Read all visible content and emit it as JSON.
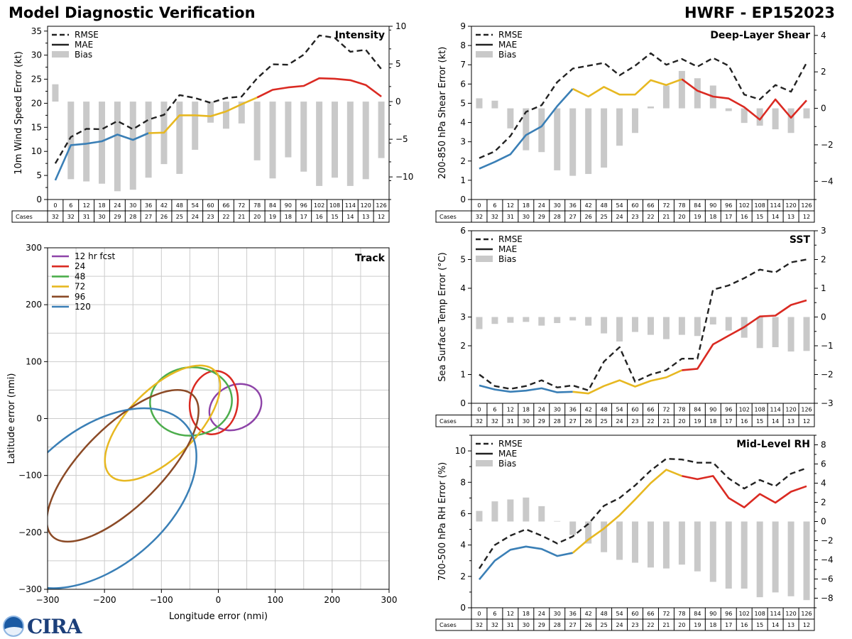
{
  "titles": {
    "main": "Model Diagnostic Verification",
    "storm": "HWRF - EP152023"
  },
  "legend_labels": {
    "rmse": "RMSE",
    "mae": "MAE",
    "bias": "Bias"
  },
  "cases_label": "Cases",
  "logo_text": "CIRA",
  "colors": {
    "early": "#3a7fb6",
    "mid": "#e7b821",
    "late": "#da2a22",
    "rmse": "#222222",
    "bias": "#c9c9c9",
    "grid": "#cccccc"
  },
  "chart_data": [
    {
      "id": "intensity",
      "type": "line",
      "title": "Intensity",
      "ylabel": "10m Wind Speed Error (kt)",
      "ylim": [
        0,
        36
      ],
      "yticks": [
        0,
        5,
        10,
        15,
        20,
        25,
        30,
        35
      ],
      "y2lim": [
        -13,
        10
      ],
      "y2ticks": [
        -10,
        -5,
        0,
        5,
        10
      ],
      "y2labels": [
        "−10",
        "−5",
        "0",
        "5",
        "10"
      ],
      "hours": [
        0,
        6,
        12,
        18,
        24,
        30,
        36,
        42,
        48,
        54,
        60,
        66,
        72,
        78,
        84,
        90,
        96,
        102,
        108,
        114,
        120,
        126
      ],
      "cases": [
        32,
        32,
        31,
        30,
        29,
        28,
        27,
        26,
        25,
        24,
        23,
        22,
        21,
        20,
        19,
        18,
        17,
        16,
        15,
        14,
        13,
        12
      ],
      "rmse": [
        7.5,
        13,
        14.7,
        14.6,
        16.3,
        14.6,
        16.6,
        17.6,
        21.7,
        21.1,
        20.1,
        21.1,
        21.4,
        25.2,
        28.1,
        28,
        30.1,
        34.1,
        33.6,
        30.7,
        31.1,
        27.1
      ],
      "mae": [
        4,
        11.3,
        11.6,
        12.1,
        13.5,
        12.4,
        13.8,
        13.9,
        17.5,
        17.5,
        17.3,
        18.3,
        19.8,
        21.2,
        22.8,
        23.3,
        23.6,
        25.2,
        25.1,
        24.8,
        23.8,
        21.4
      ],
      "bias": [
        2.3,
        -10.3,
        -10.6,
        -10.9,
        -11.9,
        -11.7,
        -10.1,
        -8.3,
        -9.6,
        -6.4,
        -2.8,
        -3.6,
        -2.9,
        -7.8,
        -10.2,
        -7.4,
        -9.3,
        -11.2,
        -10.1,
        -11.2,
        -10.3,
        -7.5
      ]
    },
    {
      "id": "shear",
      "type": "line",
      "title": "Deep-Layer Shear",
      "ylabel": "200-850 hPa Shear Error (kt)",
      "ylim": [
        0,
        9
      ],
      "yticks": [
        0,
        1,
        2,
        3,
        4,
        5,
        6,
        7,
        8,
        9
      ],
      "y2lim": [
        -5,
        4.5
      ],
      "y2ticks": [
        -4,
        -2,
        0,
        2,
        4
      ],
      "y2labels": [
        "−4",
        "−2",
        "0",
        "2",
        "4"
      ],
      "hours": [
        0,
        6,
        12,
        18,
        24,
        30,
        36,
        42,
        48,
        54,
        60,
        66,
        72,
        78,
        84,
        90,
        96,
        102,
        108,
        114,
        120,
        126
      ],
      "cases": [
        32,
        32,
        31,
        30,
        29,
        28,
        27,
        26,
        25,
        24,
        23,
        22,
        21,
        20,
        19,
        18,
        17,
        16,
        15,
        14,
        13,
        12
      ],
      "rmse": [
        2.15,
        2.5,
        3.3,
        4.55,
        4.9,
        6.1,
        6.8,
        6.95,
        7.1,
        6.45,
        6.95,
        7.6,
        7.0,
        7.3,
        6.9,
        7.35,
        6.95,
        5.45,
        5.2,
        5.95,
        5.6,
        7.1
      ],
      "mae": [
        1.6,
        1.95,
        2.35,
        3.35,
        3.8,
        4.85,
        5.75,
        5.35,
        5.85,
        5.45,
        5.45,
        6.2,
        5.95,
        6.25,
        5.65,
        5.35,
        5.25,
        4.8,
        4.15,
        5.2,
        4.25,
        5.15
      ],
      "bias": [
        0.55,
        0.42,
        -1.1,
        -2.3,
        -2.4,
        -3.4,
        -3.7,
        -3.6,
        -3.25,
        -2.05,
        -1.35,
        0.1,
        1.25,
        2.05,
        1.65,
        1.25,
        -0.15,
        -0.8,
        -0.95,
        -1.15,
        -1.35,
        -0.55
      ]
    },
    {
      "id": "sst",
      "type": "line",
      "title": "SST",
      "ylabel": "Sea Surface Temp Error (°C)",
      "ylim": [
        0,
        6
      ],
      "yticks": [
        0,
        1,
        2,
        3,
        4,
        5,
        6
      ],
      "y2lim": [
        -3,
        3
      ],
      "y2ticks": [
        -3,
        -2,
        -1,
        0,
        1,
        2,
        3
      ],
      "y2labels": [
        "−3",
        "−2",
        "−1",
        "0",
        "1",
        "2",
        "3"
      ],
      "hours": [
        0,
        6,
        12,
        18,
        24,
        30,
        36,
        42,
        48,
        54,
        60,
        66,
        72,
        78,
        84,
        90,
        96,
        102,
        108,
        114,
        120,
        126
      ],
      "cases": [
        32,
        32,
        31,
        30,
        29,
        28,
        27,
        26,
        25,
        24,
        23,
        22,
        21,
        20,
        19,
        18,
        17,
        16,
        15,
        14,
        13,
        12
      ],
      "rmse": [
        1.0,
        0.6,
        0.5,
        0.6,
        0.8,
        0.55,
        0.62,
        0.45,
        1.45,
        1.95,
        0.75,
        1.0,
        1.15,
        1.55,
        1.55,
        3.95,
        4.1,
        4.35,
        4.65,
        4.55,
        4.9,
        5.0
      ],
      "mae": [
        0.62,
        0.48,
        0.4,
        0.44,
        0.52,
        0.38,
        0.4,
        0.34,
        0.6,
        0.8,
        0.58,
        0.78,
        0.9,
        1.15,
        1.2,
        2.05,
        2.35,
        2.65,
        3.02,
        3.05,
        3.42,
        3.58
      ],
      "bias": [
        -0.42,
        -0.24,
        -0.2,
        -0.17,
        -0.3,
        -0.21,
        -0.12,
        -0.3,
        -0.57,
        -0.85,
        -0.52,
        -0.62,
        -0.77,
        -0.62,
        -0.66,
        -0.26,
        -0.47,
        -0.72,
        -1.08,
        -1.05,
        -1.2,
        -1.18
      ]
    },
    {
      "id": "rh",
      "type": "line",
      "title": "Mid-Level RH",
      "ylabel": "700-500 hPa RH Error (%)",
      "ylim": [
        0,
        11
      ],
      "yticks": [
        0,
        2,
        4,
        6,
        8,
        10
      ],
      "y2lim": [
        -9,
        9
      ],
      "y2ticks": [
        -8,
        -6,
        -4,
        -2,
        0,
        2,
        4,
        6,
        8
      ],
      "y2labels": [
        "−8",
        "−6",
        "−4",
        "−2",
        "0",
        "2",
        "4",
        "6",
        "8"
      ],
      "hours": [
        0,
        6,
        12,
        18,
        24,
        30,
        36,
        42,
        48,
        54,
        60,
        66,
        72,
        78,
        84,
        90,
        96,
        102,
        108,
        114,
        120,
        126
      ],
      "cases": [
        32,
        32,
        31,
        30,
        29,
        28,
        27,
        26,
        25,
        24,
        23,
        22,
        21,
        20,
        19,
        18,
        17,
        16,
        15,
        14,
        13,
        12
      ],
      "rmse": [
        2.5,
        4.0,
        4.6,
        5.0,
        4.6,
        4.1,
        4.55,
        5.35,
        6.5,
        7.0,
        7.8,
        8.75,
        9.5,
        9.45,
        9.25,
        9.25,
        8.25,
        7.6,
        8.15,
        7.75,
        8.55,
        8.9
      ],
      "mae": [
        1.8,
        3.0,
        3.7,
        3.9,
        3.75,
        3.3,
        3.5,
        4.35,
        5.05,
        5.9,
        6.9,
        7.95,
        8.8,
        8.4,
        8.2,
        8.4,
        7.0,
        6.4,
        7.25,
        6.7,
        7.4,
        7.75
      ],
      "bias": [
        1.1,
        2.1,
        2.3,
        2.5,
        1.6,
        0.05,
        -1.4,
        -2.3,
        -3.2,
        -4.0,
        -4.3,
        -4.8,
        -4.9,
        -4.5,
        -5.2,
        -6.3,
        -7.0,
        -7.0,
        -7.9,
        -7.4,
        -7.8,
        -8.2
      ]
    },
    {
      "id": "track",
      "type": "ellipse",
      "title": "Track",
      "xlabel": "Longitude error (nmi)",
      "ylabel": "Latitude error (nmi)",
      "xlim": [
        -300,
        300
      ],
      "ylim": [
        -300,
        300
      ],
      "xticks": [
        -300,
        -200,
        -100,
        0,
        100,
        200,
        300
      ],
      "yticks": [
        -300,
        -200,
        -100,
        0,
        100,
        200,
        300
      ],
      "xticklabels": [
        "−300",
        "−200",
        "−100",
        "0",
        "100",
        "200",
        "300"
      ],
      "yticklabels": [
        "−300",
        "−200",
        "−100",
        "0",
        "100",
        "200",
        "300"
      ],
      "series": [
        {
          "name": "12 hr fcst",
          "color": "#8e44a8",
          "cx": 30,
          "cy": 20,
          "rx": 48,
          "ry": 38,
          "angle": -30
        },
        {
          "name": "24",
          "color": "#da2a22",
          "cx": -8,
          "cy": 28,
          "rx": 42,
          "ry": 56,
          "angle": 8
        },
        {
          "name": "48",
          "color": "#4cad4c",
          "cx": -48,
          "cy": 30,
          "rx": 72,
          "ry": 60,
          "angle": -5
        },
        {
          "name": "72",
          "color": "#e7b821",
          "cx": -98,
          "cy": -8,
          "rx": 130,
          "ry": 60,
          "angle": -45
        },
        {
          "name": "96",
          "color": "#8b4a26",
          "cx": -168,
          "cy": -83,
          "rx": 175,
          "ry": 70,
          "angle": -45
        },
        {
          "name": "120",
          "color": "#3a7fb6",
          "cx": -210,
          "cy": -140,
          "rx": 200,
          "ry": 120,
          "angle": -40
        }
      ]
    }
  ]
}
